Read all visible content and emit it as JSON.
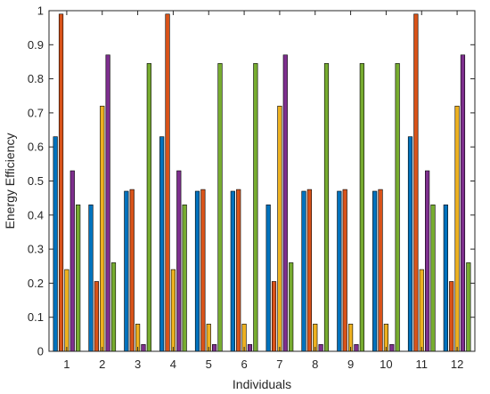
{
  "chart_data": {
    "type": "bar",
    "title": "",
    "xlabel": "Individuals",
    "ylabel": "Energy Efficiency",
    "ylim": [
      0,
      1
    ],
    "yticks": [
      0,
      0.1,
      0.2,
      0.3,
      0.4,
      0.5,
      0.6,
      0.7,
      0.8,
      0.9,
      1
    ],
    "ytick_labels": [
      "0",
      "0.1",
      "0.2",
      "0.3",
      "0.4",
      "0.5",
      "0.6",
      "0.7",
      "0.8",
      "0.9",
      "1"
    ],
    "categories": [
      "1",
      "2",
      "3",
      "4",
      "5",
      "6",
      "7",
      "8",
      "9",
      "10",
      "11",
      "12"
    ],
    "grid": false,
    "legend": "none",
    "series": [
      {
        "color": "#0072BD",
        "values": [
          0.63,
          0.43,
          0.47,
          0.63,
          0.47,
          0.47,
          0.43,
          0.47,
          0.47,
          0.47,
          0.63,
          0.43
        ]
      },
      {
        "color": "#D95319",
        "values": [
          0.99,
          0.205,
          0.475,
          0.99,
          0.475,
          0.475,
          0.205,
          0.475,
          0.475,
          0.475,
          0.99,
          0.205
        ]
      },
      {
        "color": "#EDB120",
        "values": [
          0.24,
          0.72,
          0.08,
          0.24,
          0.08,
          0.08,
          0.72,
          0.08,
          0.08,
          0.08,
          0.24,
          0.72
        ]
      },
      {
        "color": "#7E2F8E",
        "values": [
          0.53,
          0.87,
          0.02,
          0.53,
          0.02,
          0.02,
          0.87,
          0.02,
          0.02,
          0.02,
          0.53,
          0.87
        ]
      },
      {
        "color": "#77AC30",
        "values": [
          0.43,
          0.26,
          0.845,
          0.43,
          0.845,
          0.845,
          0.26,
          0.845,
          0.845,
          0.845,
          0.43,
          0.26
        ]
      }
    ]
  }
}
